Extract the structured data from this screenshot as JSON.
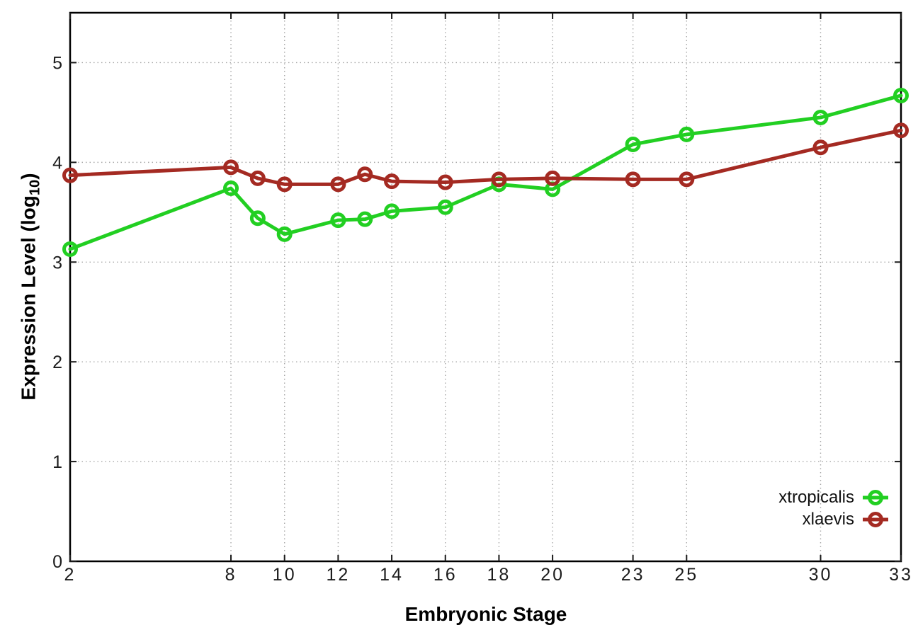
{
  "chart_data": {
    "type": "line",
    "title": "",
    "xlabel": "Embryonic Stage",
    "ylabel_text": "Expression Level (log10)",
    "ylabel_parts": {
      "prefix": "Expression Level (log",
      "subscript": "10",
      "suffix": ")"
    },
    "x": [
      2,
      8,
      9,
      10,
      12,
      13,
      14,
      16,
      18,
      20,
      23,
      25,
      30,
      33
    ],
    "series": [
      {
        "name": "xtropicalis",
        "color": "#22cf22",
        "values": [
          3.13,
          3.74,
          3.44,
          3.28,
          3.42,
          3.43,
          3.51,
          3.55,
          3.78,
          3.73,
          4.18,
          4.28,
          4.45,
          4.67
        ]
      },
      {
        "name": "xlaevis",
        "color": "#a42a22",
        "values": [
          3.87,
          3.95,
          3.84,
          3.78,
          3.78,
          3.88,
          3.81,
          3.8,
          3.83,
          3.84,
          3.83,
          3.83,
          4.15,
          4.32
        ]
      }
    ],
    "xticks": [
      2,
      8,
      10,
      12,
      14,
      16,
      18,
      20,
      23,
      25,
      30,
      33
    ],
    "yticks": [
      0,
      1,
      2,
      3,
      4,
      5
    ],
    "xlim": [
      2,
      33
    ],
    "ylim": [
      0,
      5.5
    ],
    "grid": true,
    "legend_position": "bottom-right",
    "marker": "open-circle",
    "background_color": "#ffffff"
  }
}
